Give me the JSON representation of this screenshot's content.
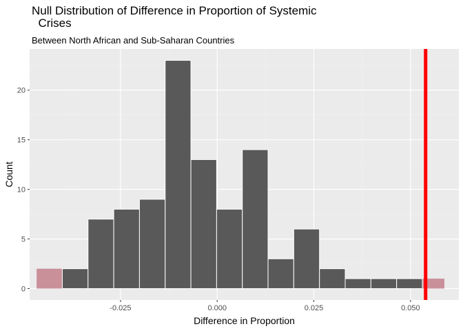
{
  "chart_data": {
    "type": "bar",
    "title_lines": [
      "Null Distribution of Difference in Proportion of Systemic",
      "  Crises"
    ],
    "subtitle": "Between North African and Sub-Saharan Countries",
    "xlabel": "Difference in Proportion",
    "ylabel": "Count",
    "xlim": [
      -0.0485,
      0.0625
    ],
    "ylim": [
      -1.15,
      24.15
    ],
    "x_ticks": [
      -0.025,
      0.0,
      0.025,
      0.05
    ],
    "x_tick_labels": [
      "-0.025",
      "0.000",
      "0.025",
      "0.050"
    ],
    "y_ticks": [
      0,
      5,
      10,
      15,
      20
    ],
    "y_tick_labels": [
      "0",
      "5",
      "10",
      "15",
      "20"
    ],
    "grid": true,
    "bin_width": 0.00665,
    "bins": [
      {
        "center": -0.04337,
        "count": 2,
        "shaded": true
      },
      {
        "center": -0.03672,
        "count": 2,
        "shaded": false
      },
      {
        "center": -0.03007,
        "count": 7,
        "shaded": false
      },
      {
        "center": -0.02342,
        "count": 8,
        "shaded": false
      },
      {
        "center": -0.01677,
        "count": 9,
        "shaded": false
      },
      {
        "center": -0.01012,
        "count": 23,
        "shaded": false
      },
      {
        "center": -0.00347,
        "count": 13,
        "shaded": false
      },
      {
        "center": 0.00318,
        "count": 8,
        "shaded": false
      },
      {
        "center": 0.00983,
        "count": 14,
        "shaded": false
      },
      {
        "center": 0.01648,
        "count": 3,
        "shaded": false
      },
      {
        "center": 0.02313,
        "count": 6,
        "shaded": false
      },
      {
        "center": 0.02978,
        "count": 2,
        "shaded": false
      },
      {
        "center": 0.03643,
        "count": 1,
        "shaded": false
      },
      {
        "center": 0.04308,
        "count": 1,
        "shaded": false
      },
      {
        "center": 0.04973,
        "count": 1,
        "shaded": false
      },
      {
        "center": 0.05543,
        "count": 1,
        "shaded": true
      }
    ],
    "observed_statistic": 0.0539,
    "colors": {
      "panel": "#ebebeb",
      "grid_major": "#ffffff",
      "grid_minor": "#f2f2f2",
      "bar_fill": "#595959",
      "bar_outline": "#ffffff",
      "shade": "#c9909a",
      "observed_line": "#ff0000"
    }
  }
}
